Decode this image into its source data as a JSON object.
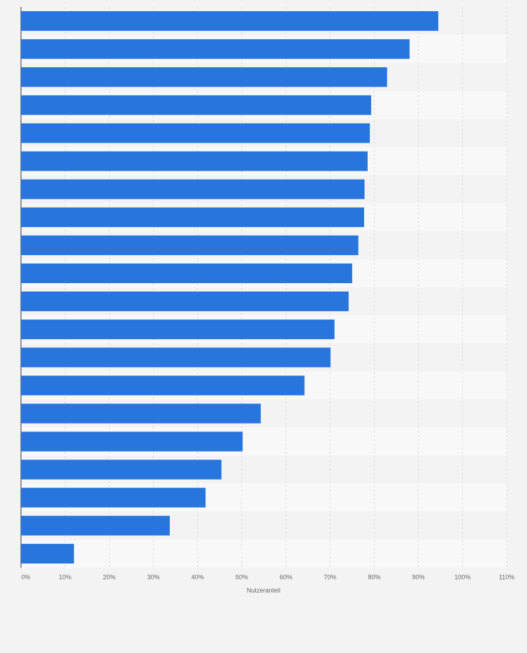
{
  "chart_data": {
    "type": "bar",
    "orientation": "horizontal",
    "categories": [
      null,
      null,
      null,
      null,
      null,
      null,
      null,
      null,
      null,
      null,
      null,
      null,
      null,
      null,
      null,
      null,
      null,
      null,
      null,
      null
    ],
    "values": [
      94.5,
      88.0,
      82.9,
      79.3,
      79.0,
      78.5,
      77.8,
      77.7,
      76.4,
      75.0,
      74.2,
      71.0,
      70.1,
      64.2,
      54.3,
      50.2,
      45.4,
      41.8,
      33.7,
      12.0
    ],
    "color": "#2875dd",
    "xlabel": "Nutzeranteil",
    "xlim": [
      0,
      110
    ],
    "xticks": [
      {
        "value": 0,
        "label": "0%"
      },
      {
        "value": 10,
        "label": "10%"
      },
      {
        "value": 20,
        "label": "20%"
      },
      {
        "value": 30,
        "label": "30%"
      },
      {
        "value": 40,
        "label": "40%"
      },
      {
        "value": 50,
        "label": "50%"
      },
      {
        "value": 60,
        "label": "60%"
      },
      {
        "value": 70,
        "label": "70%"
      },
      {
        "value": 80,
        "label": "80%"
      },
      {
        "value": 90,
        "label": "90%"
      },
      {
        "value": 100,
        "label": "100%"
      },
      {
        "value": 110,
        "label": "110%"
      }
    ],
    "grid": true
  }
}
